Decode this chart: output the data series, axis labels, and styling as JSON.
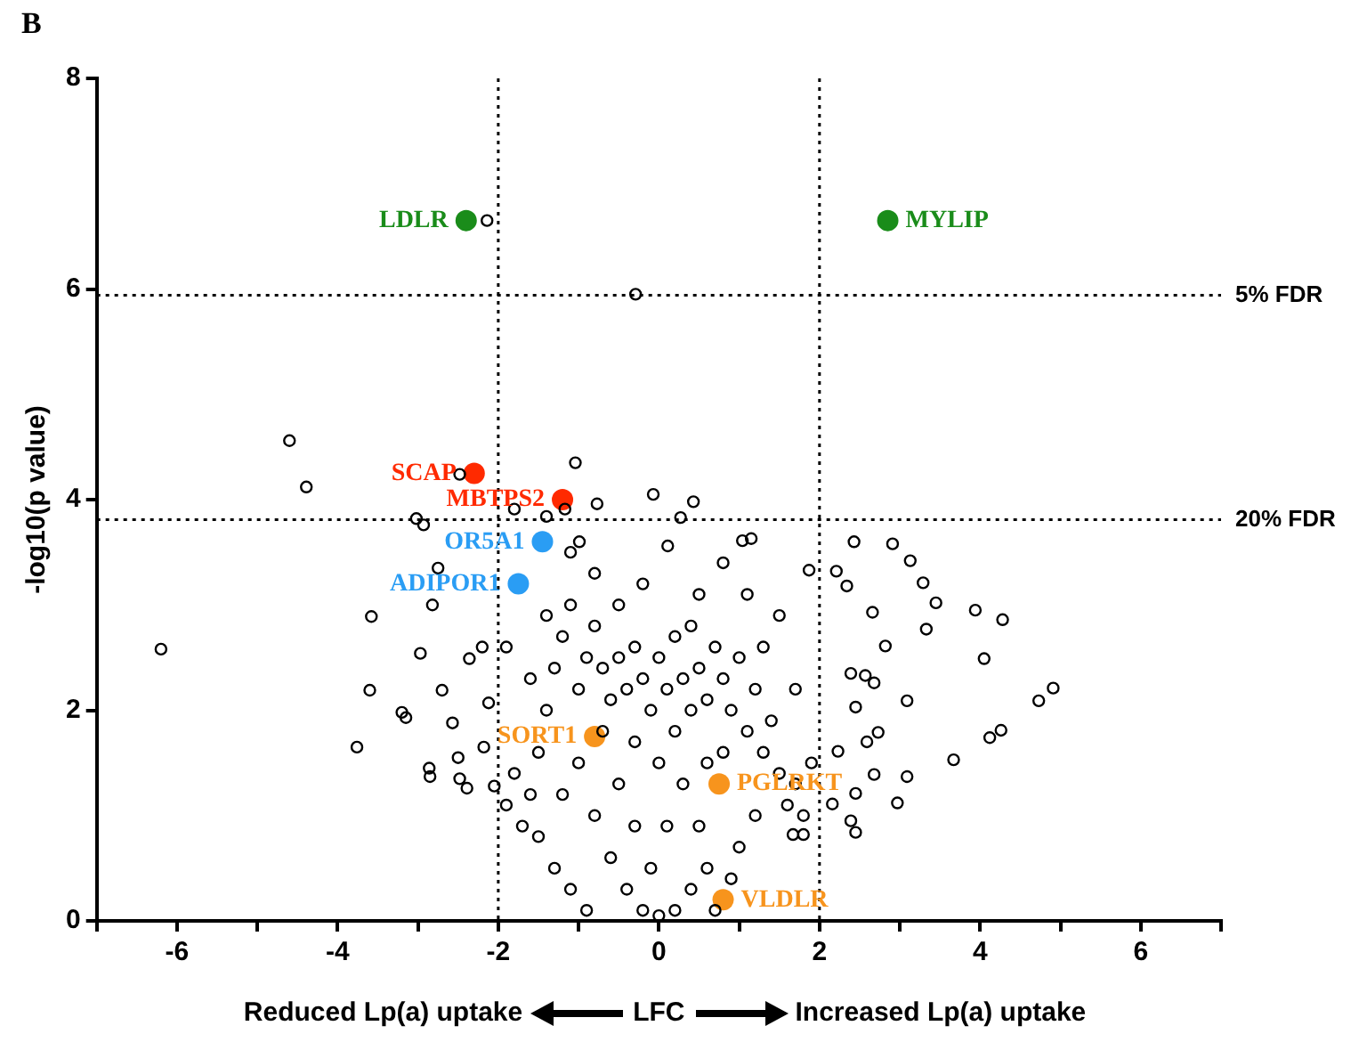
{
  "chart_data": {
    "type": "scatter",
    "xlabel": "LFC",
    "ylabel": "-log10(p value)",
    "annotations": [
      "B",
      "Reduced Lp(a) uptake",
      "Increased Lp(a) uptake"
    ],
    "xlim": [
      -7,
      7
    ],
    "xticks": [
      {
        "value": -7,
        "label": null
      },
      -6,
      {
        "value": -5,
        "label": null
      },
      -4,
      {
        "value": -3,
        "label": null
      },
      -2,
      {
        "value": -1,
        "label": null
      },
      0,
      {
        "value": 1,
        "label": null
      },
      2,
      {
        "value": 3,
        "label": null
      },
      4,
      {
        "value": 5,
        "label": null
      },
      6,
      {
        "value": 7,
        "label": null
      }
    ],
    "ylim": [
      0,
      8
    ],
    "yticks": [
      0,
      2,
      4,
      6,
      8
    ],
    "grid": false,
    "legend": false,
    "marker": "circle",
    "ref_lines": [
      {
        "axis": "y",
        "value": 5.94,
        "label": "5% FDR",
        "line_style": "dotted"
      },
      {
        "axis": "y",
        "value": 3.81,
        "label": "20% FDR",
        "line_style": "dotted"
      },
      {
        "axis": "x",
        "value": -2,
        "line_style": "dotted"
      },
      {
        "axis": "x",
        "value": 2,
        "line_style": "dotted"
      }
    ],
    "series": [
      {
        "color": "#000000",
        "x": [
          -6.2,
          -4.6,
          -4.39,
          -3.76,
          -3.58,
          -3.6,
          -2.97,
          -2.7,
          -3.2,
          -3.15,
          -2.75,
          -2.82,
          -2.86,
          -2.85,
          -2.57,
          -2.5,
          -2.48,
          -2.39,
          -2.36,
          -2.2,
          -2.18,
          -2.12,
          -2.05,
          -2.48,
          -2.14,
          -0.29,
          -3.02,
          -2.93,
          -1.8,
          -1.4,
          -1.17,
          -0.77,
          -0.07,
          0.27,
          0.43,
          -1.04,
          -0.99,
          0.11,
          1.04,
          1.15,
          2.43,
          2.91,
          3.13,
          3.29,
          3.45,
          3.94,
          4.28,
          3.33,
          4.05,
          2.82,
          2.66,
          2.21,
          2.34,
          1.87,
          4.91,
          4.73,
          4.26,
          4.12,
          3.67,
          3.09,
          3.09,
          2.97,
          2.73,
          2.59,
          2.68,
          2.45,
          2.39,
          2.45,
          2.45,
          2.39,
          2.57,
          2.68,
          2.16,
          2.23,
          1.8,
          1.67,
          -1.6,
          -1.5,
          -1.4,
          -1.3,
          -1.2,
          -1.1,
          -1.0,
          -0.9,
          -0.8,
          -0.7,
          -0.6,
          -0.5,
          -0.4,
          -0.3,
          -0.2,
          -0.1,
          0,
          0.1,
          0.2,
          0.3,
          0.4,
          0.5,
          0.6,
          0.7,
          0.8,
          0.9,
          1.0,
          1.1,
          1.2,
          1.3,
          1.4,
          1.5,
          1.6,
          1.7,
          1.8,
          1.9,
          1.0,
          1.2,
          0.9,
          0.7,
          -1.7,
          -1.8,
          -1.9,
          -1.5,
          -1.3,
          -1.1,
          -0.9,
          -1.2,
          -1.0,
          -0.8,
          -0.6,
          -0.4,
          -0.2,
          0,
          0.2,
          0.4,
          0.6,
          -0.5,
          -0.3,
          -0.1,
          0.1,
          0.3,
          0.5,
          0.8,
          -0.7,
          0.0,
          0.2,
          -0.3,
          0.6,
          1.3,
          0.4,
          -0.5,
          0.5,
          1.1,
          -1.4,
          -1.6,
          -0.8,
          0.8,
          1.5,
          -1.9,
          1.7,
          -1.1,
          -0.2
        ],
        "values": [
          2.58,
          4.56,
          4.12,
          1.65,
          2.89,
          2.19,
          2.54,
          2.19,
          1.98,
          1.93,
          3.35,
          3.0,
          1.45,
          1.37,
          1.88,
          1.55,
          1.35,
          1.26,
          2.49,
          2.6,
          1.65,
          2.07,
          1.28,
          4.24,
          6.65,
          5.95,
          3.82,
          3.76,
          3.91,
          3.84,
          3.91,
          3.96,
          4.05,
          3.83,
          3.98,
          4.35,
          3.6,
          3.56,
          3.61,
          3.63,
          3.6,
          3.58,
          3.42,
          3.21,
          3.02,
          2.95,
          2.86,
          2.77,
          2.49,
          2.61,
          2.93,
          3.32,
          3.18,
          3.33,
          2.21,
          2.09,
          1.81,
          1.74,
          1.53,
          2.09,
          1.37,
          1.12,
          1.79,
          1.7,
          1.39,
          1.21,
          0.95,
          0.84,
          2.03,
          2.35,
          2.33,
          2.26,
          1.11,
          1.61,
          0.82,
          0.82,
          1.2,
          1.6,
          2.0,
          2.4,
          2.7,
          3.0,
          2.2,
          2.5,
          2.8,
          2.4,
          2.1,
          2.5,
          2.2,
          2.6,
          2.3,
          2.0,
          2.5,
          2.2,
          2.7,
          2.3,
          2.0,
          2.4,
          2.1,
          2.6,
          2.3,
          2.0,
          2.5,
          1.8,
          2.2,
          1.6,
          1.9,
          1.4,
          1.1,
          1.3,
          1.0,
          1.5,
          0.7,
          1.0,
          0.4,
          0.1,
          0.9,
          1.4,
          1.1,
          0.8,
          0.5,
          0.3,
          0.1,
          1.2,
          1.5,
          1.0,
          0.6,
          0.3,
          0.1,
          0.05,
          0.1,
          0.3,
          0.5,
          1.3,
          0.9,
          0.5,
          0.9,
          1.3,
          0.9,
          1.6,
          1.8,
          1.5,
          1.8,
          1.7,
          1.5,
          2.6,
          2.8,
          3.0,
          3.1,
          3.1,
          2.9,
          2.3,
          3.3,
          3.4,
          2.9,
          2.6,
          2.2,
          3.5,
          3.2
        ]
      },
      {
        "name": "LDLR",
        "color": "#1a8c1a",
        "x": [
          -2.4
        ],
        "values": [
          6.65
        ]
      },
      {
        "name": "MYLIP",
        "color": "#1a8c1a",
        "x": [
          2.85
        ],
        "values": [
          6.65
        ]
      },
      {
        "name": "SCAP",
        "color": "#ff2a00",
        "x": [
          -2.3
        ],
        "values": [
          4.25
        ]
      },
      {
        "name": "MBTPS2",
        "color": "#ff2a00",
        "x": [
          -1.2
        ],
        "values": [
          4.0
        ]
      },
      {
        "name": "OR5A1",
        "color": "#2a9df4",
        "x": [
          -1.45
        ],
        "values": [
          3.6
        ]
      },
      {
        "name": "ADIPOR1",
        "color": "#2a9df4",
        "x": [
          -1.75
        ],
        "values": [
          3.2
        ]
      },
      {
        "name": "SORT1",
        "color": "#f7941d",
        "x": [
          -0.8
        ],
        "values": [
          1.75
        ]
      },
      {
        "name": "PGLRKT",
        "color": "#f7941d",
        "x": [
          0.75
        ],
        "values": [
          1.3
        ]
      },
      {
        "name": "VLDLR",
        "color": "#f7941d",
        "x": [
          0.8
        ],
        "values": [
          0.2
        ]
      }
    ]
  }
}
